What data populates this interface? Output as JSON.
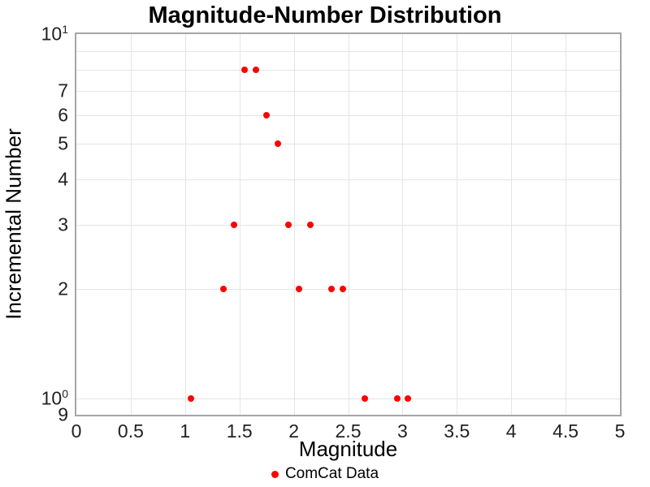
{
  "title": "Magnitude-Number Distribution",
  "axes": {
    "x": {
      "title": "Magnitude",
      "ticks": [
        {
          "v": 0,
          "label": "0"
        },
        {
          "v": 0.5,
          "label": "0.5"
        },
        {
          "v": 1,
          "label": "1"
        },
        {
          "v": 1.5,
          "label": "1.5"
        },
        {
          "v": 2,
          "label": "2"
        },
        {
          "v": 2.5,
          "label": "2.5"
        },
        {
          "v": 3,
          "label": "3"
        },
        {
          "v": 3.5,
          "label": "3.5"
        },
        {
          "v": 4,
          "label": "4"
        },
        {
          "v": 4.5,
          "label": "4.5"
        },
        {
          "v": 5,
          "label": "5"
        }
      ]
    },
    "y": {
      "title": "Incremental Number",
      "ticks": [
        {
          "v": 10,
          "base": "10",
          "exp": "1"
        },
        {
          "v": 7,
          "label": "7"
        },
        {
          "v": 6,
          "label": "6"
        },
        {
          "v": 5,
          "label": "5"
        },
        {
          "v": 4,
          "label": "4"
        },
        {
          "v": 3,
          "label": "3"
        },
        {
          "v": 2,
          "label": "2"
        },
        {
          "v": 1,
          "base": "10",
          "exp": "0"
        },
        {
          "v": 0.9,
          "label": "9"
        }
      ]
    }
  },
  "legend": {
    "label": "ComCat Data",
    "marker_color": "#ff0000"
  },
  "colors": {
    "point": "#ff0000",
    "grid": "#e5e5e5",
    "axis_line": "#a6a6a6",
    "text": "#000000"
  },
  "chart_data": {
    "type": "scatter",
    "title": "Magnitude-Number Distribution",
    "xlabel": "Magnitude",
    "ylabel": "Incremental Number",
    "xscale": "linear",
    "yscale": "log",
    "xlim": [
      0,
      5
    ],
    "ylim": [
      0.9,
      10
    ],
    "grid": true,
    "legend_position": "bottom-center",
    "x_gridlines": [
      0.5,
      1,
      1.5,
      2,
      2.5,
      3,
      3.5,
      4,
      4.5
    ],
    "y_gridlines": [
      9,
      8,
      7,
      6,
      5,
      4,
      3,
      2,
      1
    ],
    "series": [
      {
        "name": "ComCat Data",
        "color": "#ff0000",
        "marker": "circle",
        "points": [
          [
            1.05,
            1
          ],
          [
            1.35,
            2
          ],
          [
            1.45,
            3
          ],
          [
            1.55,
            8
          ],
          [
            1.65,
            8
          ],
          [
            1.75,
            6
          ],
          [
            1.85,
            5
          ],
          [
            1.95,
            3
          ],
          [
            2.05,
            2
          ],
          [
            2.15,
            3
          ],
          [
            2.35,
            2
          ],
          [
            2.45,
            2
          ],
          [
            2.65,
            1
          ],
          [
            2.95,
            1
          ],
          [
            3.05,
            1
          ]
        ]
      }
    ]
  }
}
